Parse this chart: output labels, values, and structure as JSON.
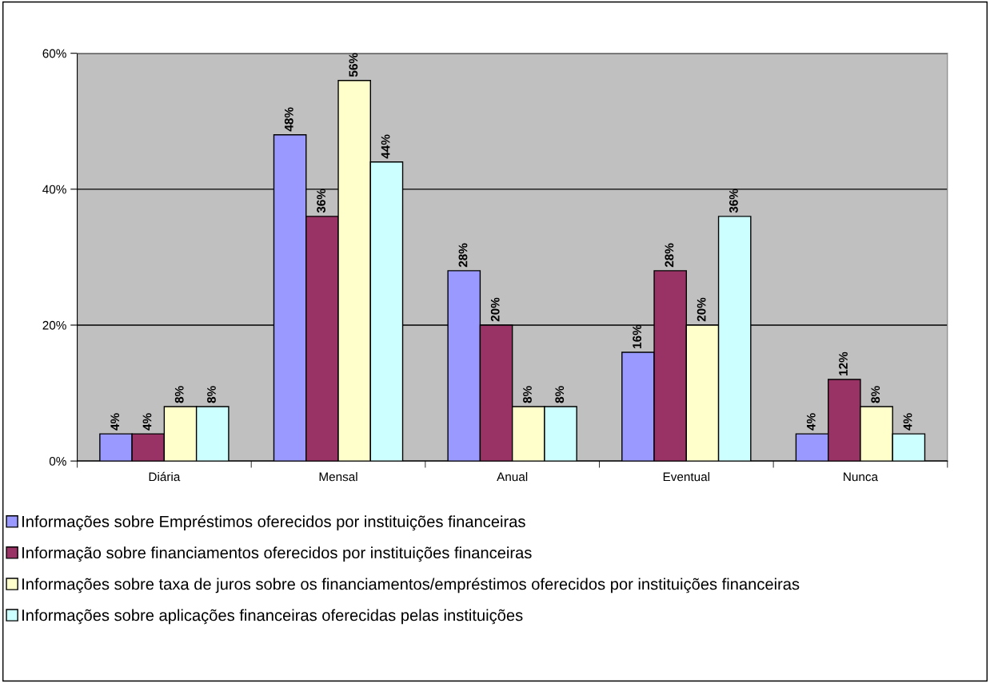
{
  "chart_data": {
    "type": "bar",
    "categories": [
      "Diária",
      "Mensal",
      "Anual",
      "Eventual",
      "Nunca"
    ],
    "series": [
      {
        "name": "Informações sobre Empréstimos oferecidos por instituições financeiras",
        "color": "#9999ff",
        "values": [
          4,
          48,
          28,
          16,
          4
        ],
        "value_labels": [
          "4%",
          "48%",
          "28%",
          "16%",
          "4%"
        ]
      },
      {
        "name": "Informação sobre financiamentos oferecidos por instituições financeiras",
        "color": "#993366",
        "values": [
          4,
          36,
          20,
          28,
          12
        ],
        "value_labels": [
          "4%",
          "36%",
          "20%",
          "28%",
          "12%"
        ]
      },
      {
        "name": "Informações sobre taxa de juros sobre os financiamentos/empréstimos oferecidos por instituições financeiras",
        "color": "#ffffcc",
        "values": [
          8,
          56,
          8,
          20,
          8
        ],
        "value_labels": [
          "8%",
          "56%",
          "8%",
          "20%",
          "8%"
        ]
      },
      {
        "name": "Informações sobre aplicações financeiras oferecidas pelas instituições",
        "color": "#ccffff",
        "values": [
          8,
          44,
          8,
          36,
          4
        ],
        "value_labels": [
          "8%",
          "44%",
          "8%",
          "36%",
          "4%"
        ]
      }
    ],
    "ylim": [
      0,
      60
    ],
    "yticks": [
      {
        "value": 0,
        "label": "0%"
      },
      {
        "value": 20,
        "label": "20%"
      },
      {
        "value": 40,
        "label": "40%"
      },
      {
        "value": 60,
        "label": "60%"
      }
    ],
    "grid": "y",
    "legend": "bottom"
  }
}
